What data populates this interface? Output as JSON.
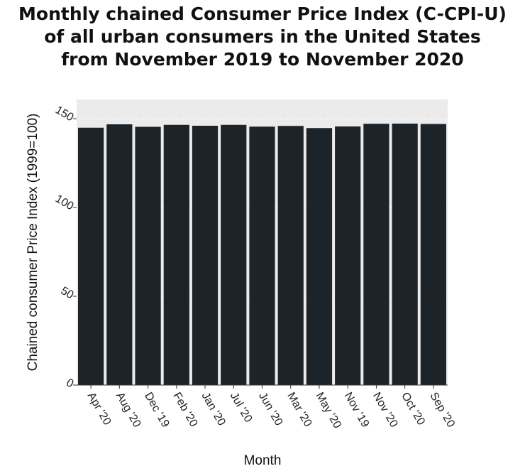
{
  "chart_data": {
    "type": "bar",
    "title": "Monthly chained Consumer Price Index (C-CPI-U)\nof all urban consumers in the United States\nfrom November 2019 to November 2020",
    "xlabel": "Month",
    "ylabel": "Chained consumer Price Index (1999=100)",
    "categories": [
      "Apr '20",
      "Aug '20",
      "Dec '19",
      "Feb '20",
      "Jan '20",
      "Jul '20",
      "Jun '20",
      "Mar '20",
      "May '20",
      "Nov '19",
      "Nov '20",
      "Oct '20",
      "Sep '20"
    ],
    "values": [
      144.9,
      146.8,
      145.4,
      146.5,
      146.0,
      146.5,
      145.5,
      145.9,
      144.7,
      145.6,
      147.1,
      147.2,
      147.0
    ],
    "ylim": [
      0,
      150
    ],
    "yticks": [
      0,
      50,
      100,
      150
    ],
    "grid": true,
    "bar_color": "#1c2329",
    "panel_color": "#ebebeb"
  }
}
